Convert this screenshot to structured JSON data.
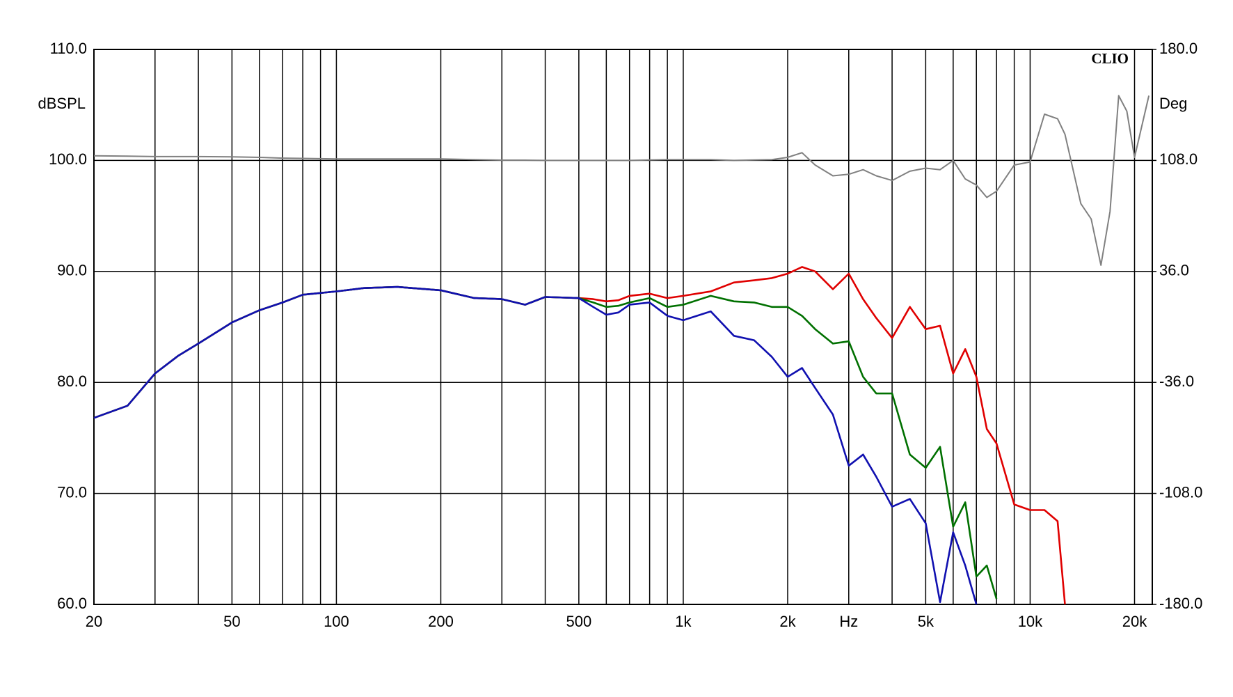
{
  "chart_data": {
    "type": "line",
    "annotation": "CLIO",
    "ylabel": "dBSPL",
    "y2label": "Deg",
    "log_x": true,
    "grid": true,
    "xlim": [
      20,
      22500
    ],
    "xticks": [
      20,
      50,
      100,
      200,
      500,
      {
        "value": 1000,
        "label": "1k"
      },
      {
        "value": 2000,
        "label": "2k"
      },
      {
        "value": 3000,
        "label": "Hz"
      },
      {
        "value": 5000,
        "label": "5k"
      },
      {
        "value": 10000,
        "label": "10k"
      },
      {
        "value": 20000,
        "label": "20k"
      }
    ],
    "xminor": [
      30,
      40,
      60,
      70,
      80,
      90,
      300,
      400,
      600,
      700,
      800,
      900,
      4000,
      6000,
      7000,
      8000,
      9000
    ],
    "ylim": [
      60,
      110
    ],
    "yticks": [
      {
        "value": 60,
        "label": "60.0"
      },
      {
        "value": 70,
        "label": "70.0"
      },
      {
        "value": 80,
        "label": "80.0"
      },
      {
        "value": 90,
        "label": "90.0"
      },
      {
        "value": 100,
        "label": "100.0"
      },
      {
        "value": 110,
        "label": "110.0"
      }
    ],
    "y2lim": [
      -180,
      180
    ],
    "y2ticks": [
      {
        "value": -180,
        "label": "-180.0"
      },
      {
        "value": -108,
        "label": "-108.0"
      },
      {
        "value": -36,
        "label": "-36.0"
      },
      {
        "value": 36,
        "label": "36.0"
      },
      {
        "value": 108,
        "label": "108.0"
      },
      {
        "value": 180,
        "label": "180.0"
      }
    ],
    "x": [
      20,
      25,
      30,
      35,
      40,
      50,
      60,
      70,
      80,
      100,
      120,
      150,
      200,
      250,
      300,
      350,
      400,
      500,
      550,
      600,
      650,
      700,
      800,
      900,
      1000,
      1200,
      1400,
      1600,
      1800,
      2000,
      2200,
      2400,
      2700,
      3000,
      3300,
      3600,
      4000,
      4500,
      5000,
      5500,
      6000,
      6500,
      7000,
      7500,
      8000,
      9000,
      10000,
      11000,
      12000,
      12600,
      14000,
      15000,
      16000,
      17000,
      18000,
      19000,
      20000,
      22000
    ],
    "series": [
      {
        "color": "#808080",
        "axis": "y2",
        "values": [
          111,
          110.8,
          110.5,
          110.5,
          110.5,
          110.3,
          110,
          109.5,
          109.3,
          109,
          109,
          109,
          109,
          108.5,
          108.2,
          108.2,
          108,
          108,
          108,
          108,
          108,
          108,
          108.3,
          108.5,
          108.5,
          108.5,
          108,
          108.3,
          108.5,
          110,
          113,
          105,
          98,
          99,
          102,
          98,
          95,
          101,
          103,
          102,
          108,
          96,
          92,
          84,
          88,
          105,
          107,
          138,
          135,
          125,
          80,
          70,
          40,
          75,
          150,
          140,
          110,
          150
        ]
      },
      {
        "color": "#e00000",
        "values": [
          76.8,
          77.9,
          80.8,
          82.4,
          83.5,
          85.4,
          86.5,
          87.2,
          87.9,
          88.2,
          88.5,
          88.6,
          88.3,
          87.6,
          87.5,
          87.0,
          87.7,
          87.6,
          87.5,
          87.3,
          87.4,
          87.8,
          88.0,
          87.6,
          87.8,
          88.2,
          89.0,
          89.2,
          89.4,
          89.8,
          90.4,
          90.0,
          88.4,
          89.8,
          87.5,
          85.8,
          84.0,
          86.8,
          84.8,
          85.1,
          80.8,
          83.0,
          80.5,
          75.8,
          74.5,
          69.0,
          68.5,
          68.5,
          67.5,
          60.0,
          null,
          null,
          null,
          null,
          null,
          null,
          null,
          null
        ]
      },
      {
        "color": "#007000",
        "values": [
          76.8,
          77.9,
          80.8,
          82.4,
          83.5,
          85.4,
          86.5,
          87.2,
          87.9,
          88.2,
          88.5,
          88.6,
          88.3,
          87.6,
          87.5,
          87.0,
          87.7,
          87.6,
          87.2,
          86.8,
          86.9,
          87.2,
          87.6,
          86.8,
          87.0,
          87.8,
          87.3,
          87.2,
          86.8,
          86.8,
          86.0,
          84.8,
          83.5,
          83.7,
          80.5,
          79.0,
          79.0,
          73.5,
          72.3,
          74.2,
          67.0,
          69.2,
          62.5,
          63.5,
          60.5,
          null,
          null,
          null,
          null,
          null,
          null,
          null,
          null,
          null,
          null,
          null,
          null,
          null
        ]
      },
      {
        "color": "#1010b0",
        "values": [
          76.8,
          77.9,
          80.8,
          82.4,
          83.5,
          85.4,
          86.5,
          87.2,
          87.9,
          88.2,
          88.5,
          88.6,
          88.3,
          87.6,
          87.5,
          87.0,
          87.7,
          87.6,
          86.8,
          86.1,
          86.3,
          87.0,
          87.2,
          86.0,
          85.6,
          86.4,
          84.2,
          83.8,
          82.3,
          80.5,
          81.3,
          79.5,
          77.1,
          72.5,
          73.5,
          71.5,
          68.8,
          69.5,
          67.3,
          60.2,
          66.5,
          63.5,
          60.0,
          null,
          null,
          null,
          null,
          null,
          null,
          null,
          null,
          null,
          null,
          null,
          null,
          null,
          null,
          null
        ]
      }
    ]
  }
}
